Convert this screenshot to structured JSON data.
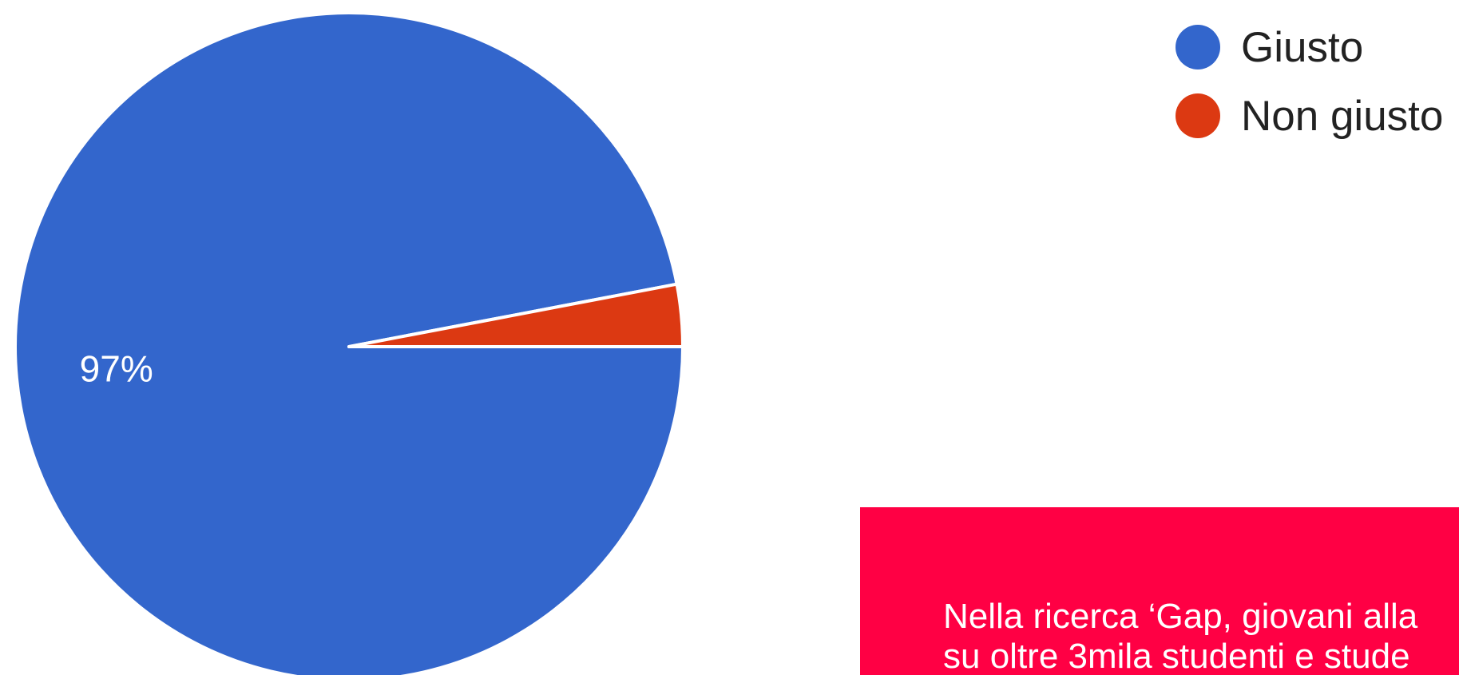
{
  "chart_data": {
    "type": "pie",
    "slices": [
      {
        "label": "Giusto",
        "value": 97,
        "display": "97%",
        "color": "#3366cc"
      },
      {
        "label": "Non giusto",
        "value": 3,
        "display": "",
        "color": "#dc3912"
      }
    ],
    "legend": [
      "Giusto",
      "Non giusto"
    ],
    "legend_position": "top-right"
  },
  "note": {
    "lines": [
      "Nella ricerca ‘Gap, giovani alla",
      "su oltre 3mila studenti e stude"
    ],
    "background": "#ff0044"
  }
}
